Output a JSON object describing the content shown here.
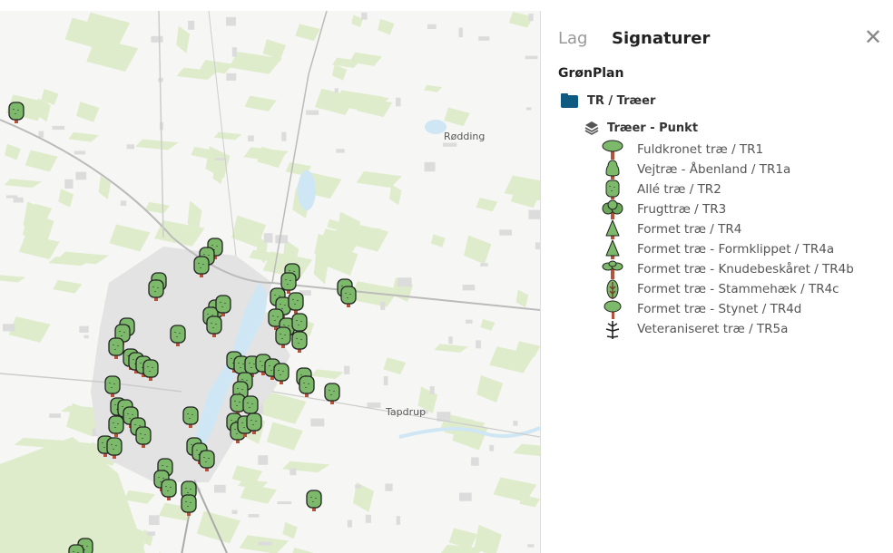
{
  "map": {
    "places": [
      {
        "name": "Rødding"
      },
      {
        "name": "Tapdrup"
      }
    ],
    "colors": {
      "land": "#f6f6f4",
      "green": "#dfeccb",
      "urban": "#e3e3e3",
      "water": "#cfe6f5",
      "marker_fill": "#7cb96a",
      "marker_trunk": "#b5523b"
    }
  },
  "panel": {
    "tabs": [
      {
        "label": "Lag",
        "active": false
      },
      {
        "label": "Signaturer",
        "active": true
      }
    ],
    "close_icon": "close-icon",
    "group": "GrønPlan",
    "folder": {
      "label": "TR / Træer",
      "icon": "folder-icon",
      "color": "#0e5a80"
    },
    "layer": {
      "label": "Træer - Punkt",
      "icon": "layers-icon"
    },
    "items": [
      {
        "label": "Fuldkronet træ / TR1",
        "icon": "tree-broad"
      },
      {
        "label": "Vejtræ - Åbenland / TR1a",
        "icon": "tree-road"
      },
      {
        "label": "Allé træ / TR2",
        "icon": "tree-alle"
      },
      {
        "label": "Frugttræ / TR3",
        "icon": "tree-fruit"
      },
      {
        "label": "Formet træ / TR4",
        "icon": "tree-cone"
      },
      {
        "label": "Formet træ - Formklippet / TR4a",
        "icon": "tree-cone"
      },
      {
        "label": "Formet træ - Knudebeskåret / TR4b",
        "icon": "tree-knot"
      },
      {
        "label": "Formet træ - Stammehæk / TR4c",
        "icon": "tree-hedge"
      },
      {
        "label": "Formet træ - Stynet / TR4d",
        "icon": "tree-pollard"
      },
      {
        "label": "Veteraniseret træ / TR5a",
        "icon": "tree-veteran"
      }
    ]
  }
}
